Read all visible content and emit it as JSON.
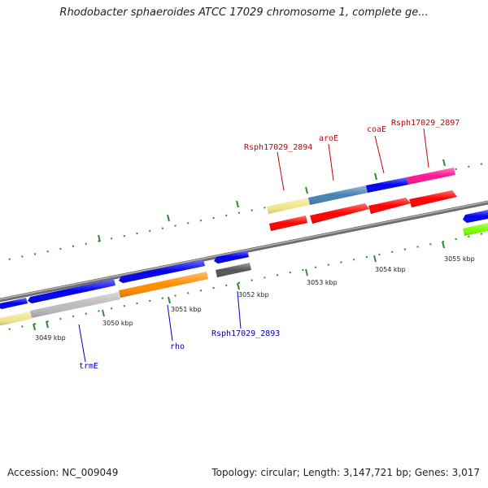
{
  "title": "Rhodobacter sphaeroides ATCC 17029 chromosome 1, complete ge...",
  "footer": {
    "accession": "Accession: NC_009049",
    "stats": "Topology: circular; Length: 3,147,721 bp; Genes: 3,017"
  },
  "scale": {
    "labels": [
      "3049 kbp",
      "3050 kbp",
      "3051 kbp",
      "3052 kbp",
      "3053 kbp",
      "3054 kbp",
      "3055 kbp"
    ]
  },
  "genes": {
    "forward_labels": [
      "Rsph17029_2894",
      "aroE",
      "coaE",
      "Rsph17029_2897"
    ],
    "reverse_labels": [
      "trmE",
      "rho",
      "Rsph17029_2893"
    ]
  },
  "colors": {
    "background": "#ffffff",
    "backbone": "#8c8c8c",
    "tick": "#2e8b2e",
    "forward_label": "#cc0000",
    "reverse_label": "#0000bb",
    "cds": "#ff0000",
    "blue": "#0000ee",
    "steelblue": "#4682b4",
    "khaki": "#f0e68c",
    "pink": "#ff1493",
    "orange": "#ff8c00",
    "gray": "#bbbbbb",
    "darkgray": "#555555",
    "green": "#7cfc00"
  }
}
